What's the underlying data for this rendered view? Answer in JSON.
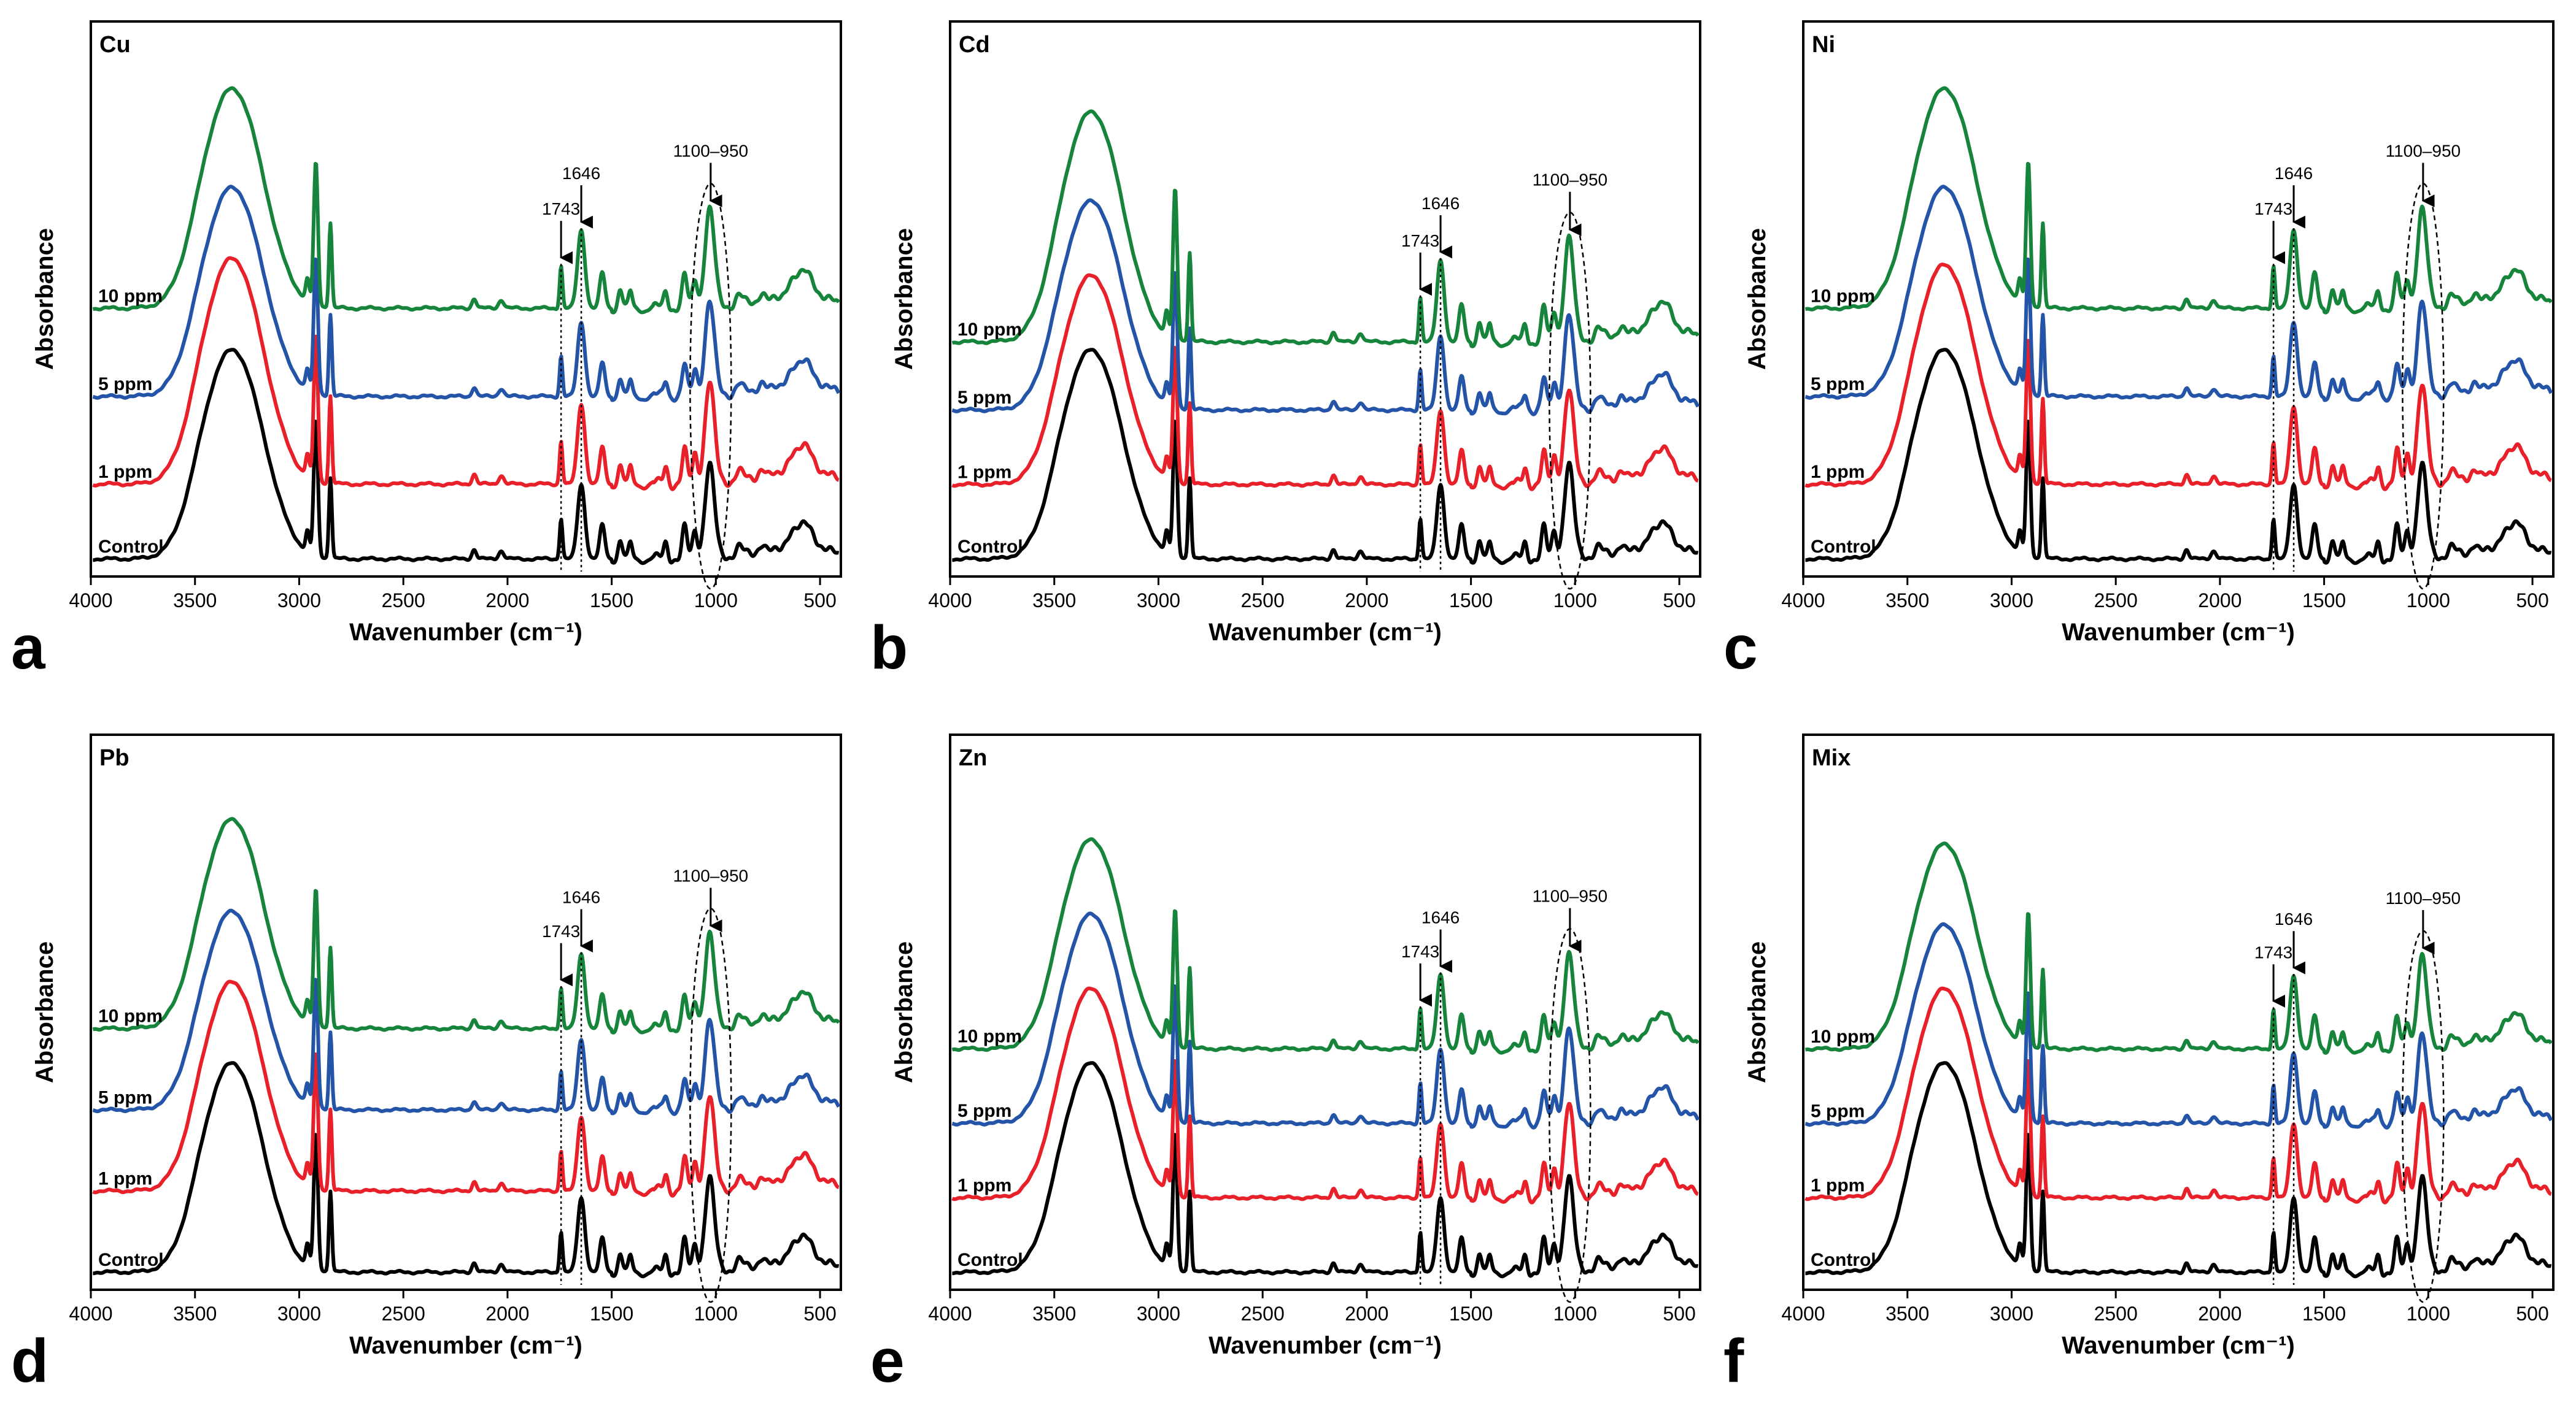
{
  "figure": {
    "xlabel": "Wavenumber (cm⁻¹)",
    "ylabel": "Absorbance",
    "x_ticks": [
      "4000",
      "3500",
      "3000",
      "2500",
      "2000",
      "1500",
      "1000",
      "500"
    ],
    "series_colors": {
      "Control": "#000000",
      "1 ppm": "#e8202a",
      "5 ppm": "#2354a8",
      "10 ppm": "#17843b"
    }
  },
  "chart_data": [
    {
      "type": "line",
      "panel_letter": "a",
      "title": "Cu",
      "xlim": [
        4000,
        400
      ],
      "xlabel": "Wavenumber (cm⁻¹)",
      "ylabel": "Absorbance",
      "series": [
        {
          "name": "Control",
          "offset": 0.0,
          "scale": 1.0
        },
        {
          "name": "1 ppm",
          "offset": 0.55,
          "scale": 1.08
        },
        {
          "name": "5 ppm",
          "offset": 1.2,
          "scale": 1.0
        },
        {
          "name": "10 ppm",
          "offset": 1.85,
          "scale": 1.05
        }
      ],
      "annotations": [
        {
          "text": "1743",
          "x": 1743,
          "arrow": true,
          "dotted_line": true
        },
        {
          "text": "1646",
          "x": 1646,
          "arrow": true,
          "dotted_line": true
        },
        {
          "text": "1100–950",
          "x": 1025,
          "arrow": true,
          "ellipse_range": [
            1100,
            950
          ]
        }
      ]
    },
    {
      "type": "line",
      "panel_letter": "b",
      "title": "Cd",
      "xlim": [
        4000,
        400
      ],
      "xlabel": "Wavenumber (cm⁻¹)",
      "ylabel": "Absorbance",
      "series": [
        {
          "name": "Control",
          "offset": 0.0,
          "scale": 1.0
        },
        {
          "name": "1 ppm",
          "offset": 0.55,
          "scale": 1.0
        },
        {
          "name": "5 ppm",
          "offset": 1.1,
          "scale": 1.0
        },
        {
          "name": "10 ppm",
          "offset": 1.6,
          "scale": 1.1
        }
      ],
      "annotations": [
        {
          "text": "1743",
          "x": 1743,
          "arrow": true,
          "dotted_line": true
        },
        {
          "text": "1646",
          "x": 1646,
          "arrow": true,
          "dotted_line": true
        },
        {
          "text": "1100–950",
          "x": 1025,
          "arrow": true,
          "ellipse_range": [
            1100,
            950
          ]
        }
      ]
    },
    {
      "type": "line",
      "panel_letter": "c",
      "title": "Ni",
      "xlim": [
        4000,
        400
      ],
      "xlabel": "Wavenumber (cm⁻¹)",
      "ylabel": "Absorbance",
      "series": [
        {
          "name": "Control",
          "offset": 0.0,
          "scale": 1.0
        },
        {
          "name": "1 ppm",
          "offset": 0.55,
          "scale": 1.05
        },
        {
          "name": "5 ppm",
          "offset": 1.2,
          "scale": 1.0
        },
        {
          "name": "10 ppm",
          "offset": 1.85,
          "scale": 1.05
        }
      ],
      "annotations": [
        {
          "text": "1743",
          "x": 1743,
          "arrow": true,
          "dotted_line": true
        },
        {
          "text": "1646",
          "x": 1646,
          "arrow": true,
          "dotted_line": true
        },
        {
          "text": "1100–950",
          "x": 1025,
          "arrow": true,
          "ellipse_range": [
            1100,
            950
          ]
        }
      ]
    },
    {
      "type": "line",
      "panel_letter": "d",
      "title": "Pb",
      "xlim": [
        4000,
        400
      ],
      "xlabel": "Wavenumber (cm⁻¹)",
      "ylabel": "Absorbance",
      "series": [
        {
          "name": "Control",
          "offset": 0.0,
          "scale": 1.0
        },
        {
          "name": "1 ppm",
          "offset": 0.6,
          "scale": 1.0
        },
        {
          "name": "5 ppm",
          "offset": 1.2,
          "scale": 0.95
        },
        {
          "name": "10 ppm",
          "offset": 1.8,
          "scale": 1.0
        }
      ],
      "annotations": [
        {
          "text": "1743",
          "x": 1743,
          "arrow": true,
          "dotted_line": true
        },
        {
          "text": "1646",
          "x": 1646,
          "arrow": true,
          "dotted_line": true
        },
        {
          "text": "1100–950",
          "x": 1025,
          "arrow": true,
          "ellipse_range": [
            1100,
            950
          ]
        }
      ]
    },
    {
      "type": "line",
      "panel_letter": "e",
      "title": "Zn",
      "xlim": [
        4000,
        400
      ],
      "xlabel": "Wavenumber (cm⁻¹)",
      "ylabel": "Absorbance",
      "series": [
        {
          "name": "Control",
          "offset": 0.0,
          "scale": 1.0
        },
        {
          "name": "1 ppm",
          "offset": 0.55,
          "scale": 1.0
        },
        {
          "name": "5 ppm",
          "offset": 1.1,
          "scale": 1.0
        },
        {
          "name": "10 ppm",
          "offset": 1.65,
          "scale": 1.0
        }
      ],
      "annotations": [
        {
          "text": "1743",
          "x": 1743,
          "arrow": true,
          "dotted_line": true
        },
        {
          "text": "1646",
          "x": 1646,
          "arrow": true,
          "dotted_line": true
        },
        {
          "text": "1100–950",
          "x": 1025,
          "arrow": true,
          "ellipse_range": [
            1100,
            950
          ]
        }
      ]
    },
    {
      "type": "line",
      "panel_letter": "f",
      "title": "Mix",
      "xlim": [
        4000,
        400
      ],
      "xlabel": "Wavenumber (cm⁻¹)",
      "ylabel": "Absorbance",
      "series": [
        {
          "name": "Control",
          "offset": 0.0,
          "scale": 1.0
        },
        {
          "name": "1 ppm",
          "offset": 0.55,
          "scale": 1.0
        },
        {
          "name": "5 ppm",
          "offset": 1.1,
          "scale": 0.95
        },
        {
          "name": "10 ppm",
          "offset": 1.65,
          "scale": 0.98
        }
      ],
      "annotations": [
        {
          "text": "1743",
          "x": 1743,
          "arrow": true,
          "dotted_line": true
        },
        {
          "text": "1646",
          "x": 1646,
          "arrow": true,
          "dotted_line": true
        },
        {
          "text": "1100–950",
          "x": 1025,
          "arrow": true,
          "ellipse_range": [
            1100,
            950
          ]
        }
      ]
    }
  ]
}
